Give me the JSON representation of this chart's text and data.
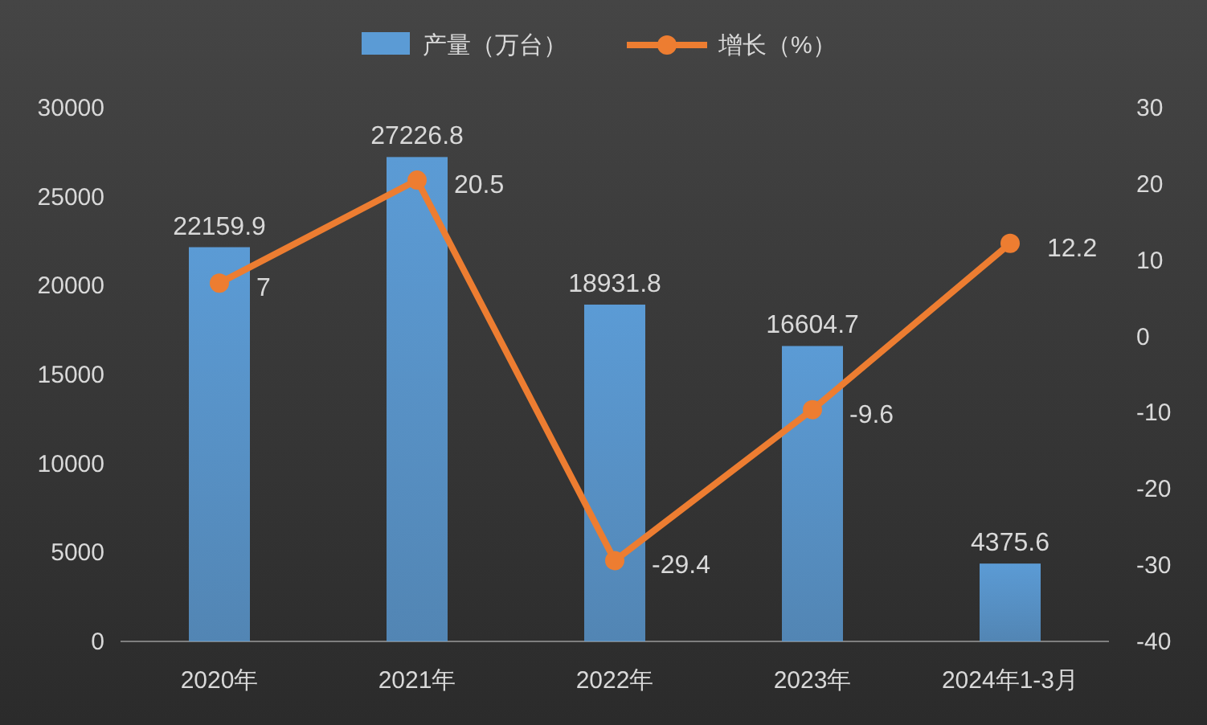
{
  "chart_data": {
    "type": "bar",
    "categories": [
      "2020年",
      "2021年",
      "2022年",
      "2023年",
      "2024年1-3月"
    ],
    "series": [
      {
        "name": "产量（万台）",
        "color": "#5b9bd5",
        "values": [
          22159.9,
          27226.8,
          18931.8,
          16604.7,
          4375.6
        ]
      },
      {
        "name": "增长（%）",
        "type": "line",
        "axis": "y2",
        "color": "#ed7d31",
        "values": [
          7,
          20.5,
          -29.4,
          -9.6,
          12.2
        ]
      }
    ],
    "ylim": [
      0,
      30000
    ],
    "yticks": [
      0,
      5000,
      10000,
      15000,
      20000,
      25000,
      30000
    ],
    "y2lim": [
      -40,
      30
    ],
    "y2ticks": [
      -40,
      -30,
      -20,
      -10,
      0,
      10,
      20,
      30
    ],
    "marker": "circle",
    "line_style": "solid",
    "data_labels": true,
    "legend": "top",
    "grid": false
  }
}
